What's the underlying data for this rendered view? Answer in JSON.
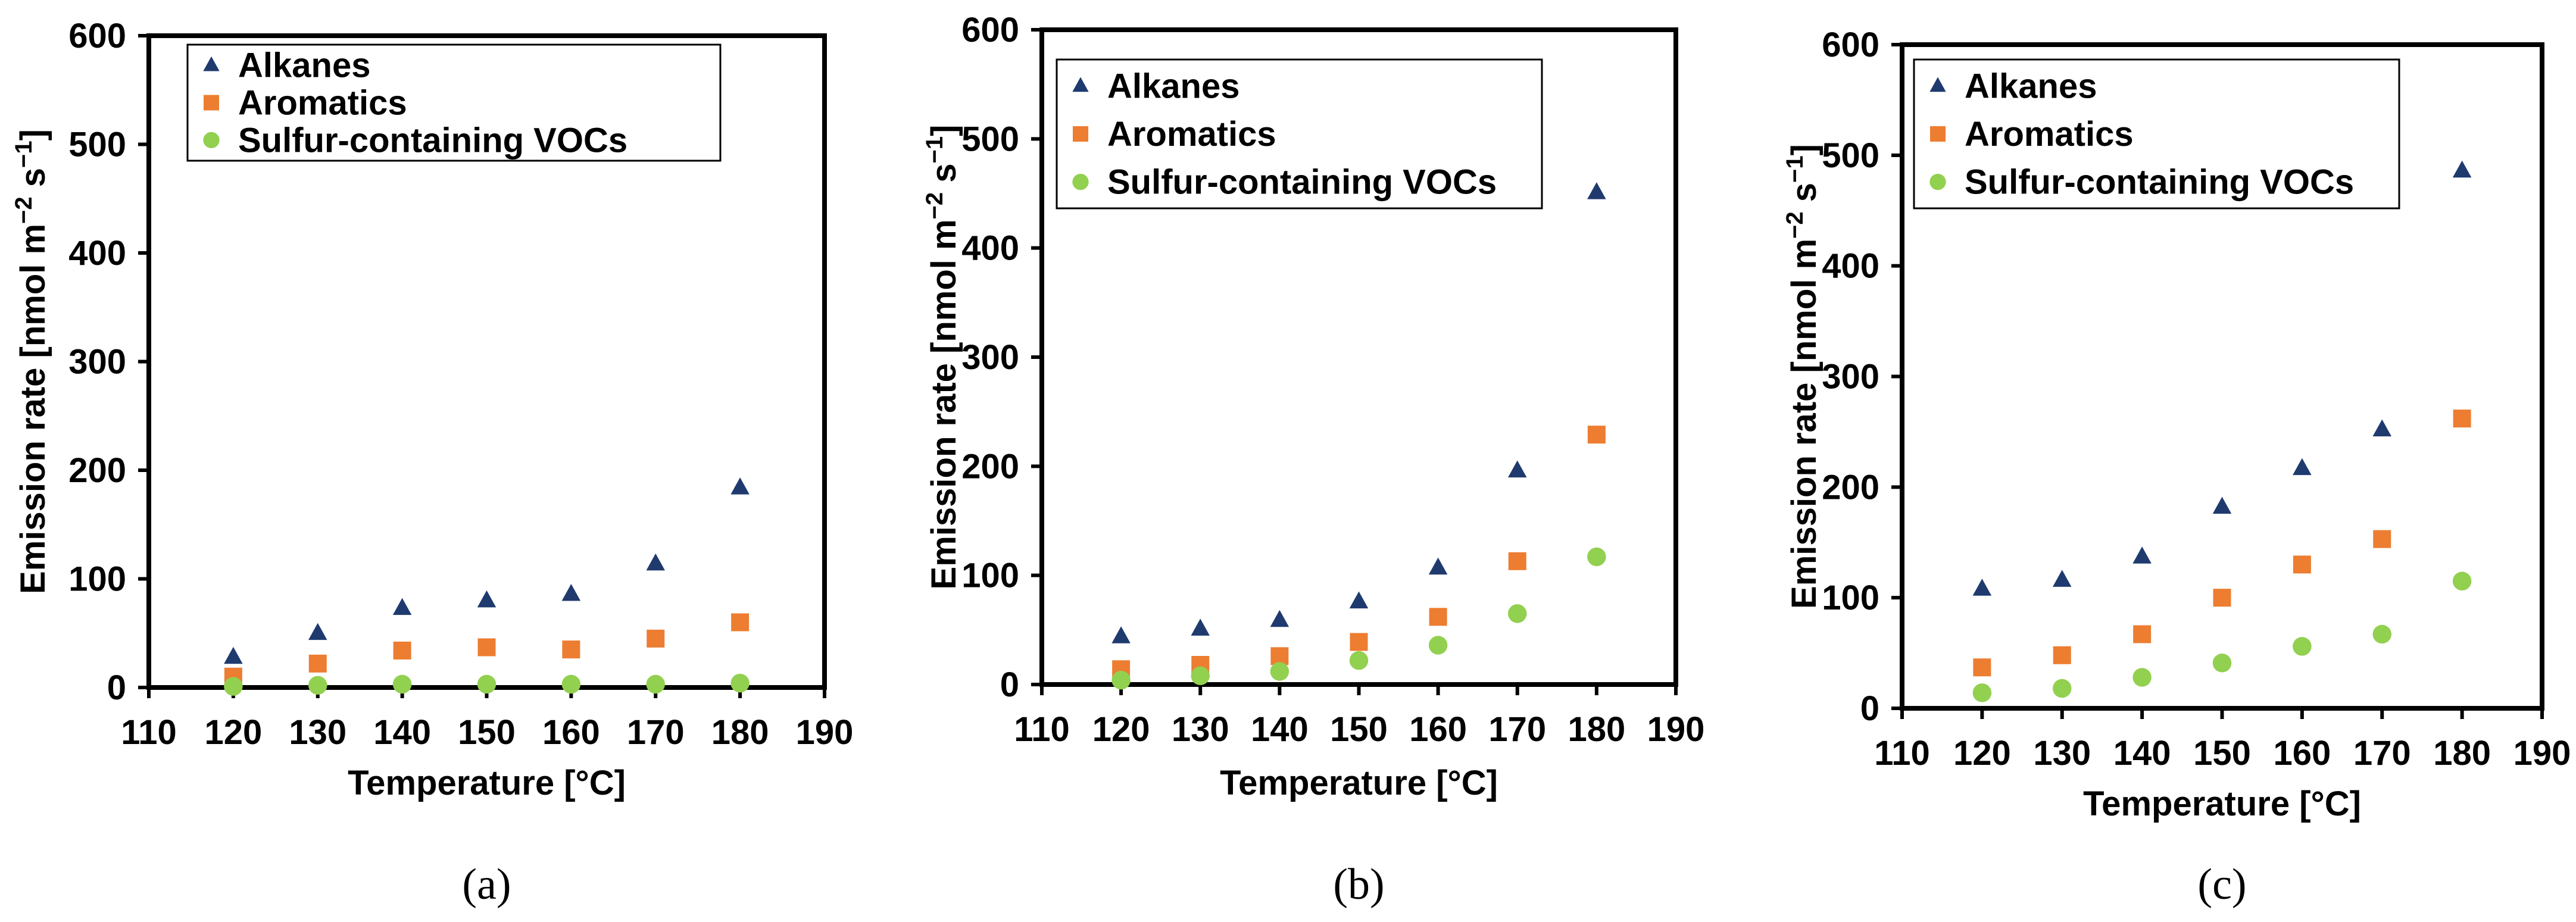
{
  "chart_data": [
    {
      "type": "scatter",
      "panel_label": "(a)",
      "xlabel": "Temperature [°C]",
      "ylabel": "Emission rate [nmol m",
      "ylabel_sup1": "−2",
      "ylabel_mid": " s",
      "ylabel_sup2": "−1",
      "ylabel_end": "]",
      "xlim": [
        110,
        190
      ],
      "ylim": [
        0,
        600
      ],
      "xticks": [
        "110",
        "120",
        "130",
        "140",
        "150",
        "160",
        "170",
        "180",
        "190"
      ],
      "yticks": [
        "0",
        "100",
        "200",
        "300",
        "400",
        "500",
        "600"
      ],
      "x": [
        120,
        130,
        140,
        150,
        160,
        170,
        180
      ],
      "series": [
        {
          "name": "Alkanes",
          "marker": "triangle",
          "color": "#1f3a6e",
          "values": [
            28,
            50,
            73,
            80,
            86,
            114,
            184
          ]
        },
        {
          "name": "Aromatics",
          "marker": "square",
          "color": "#ed7d31",
          "values": [
            10,
            22,
            34,
            37,
            35,
            45,
            60
          ]
        },
        {
          "name": "Sulfur-containing VOCs",
          "marker": "circle",
          "color": "#92d050",
          "values": [
            1,
            2,
            3,
            3,
            3,
            3,
            4
          ]
        }
      ]
    },
    {
      "type": "scatter",
      "panel_label": "(b)",
      "xlabel": "Temperature [°C]",
      "ylabel": "Emission rate [nmol m",
      "ylabel_sup1": "−2",
      "ylabel_mid": " s",
      "ylabel_sup2": "−1",
      "ylabel_end": "]",
      "xlim": [
        110,
        190
      ],
      "ylim": [
        0,
        600
      ],
      "xticks": [
        "110",
        "120",
        "130",
        "140",
        "150",
        "160",
        "170",
        "180",
        "190"
      ],
      "yticks": [
        "0",
        "100",
        "200",
        "300",
        "400",
        "500",
        "600"
      ],
      "x": [
        120,
        130,
        140,
        150,
        160,
        170,
        180
      ],
      "series": [
        {
          "name": "Alkanes",
          "marker": "triangle",
          "color": "#1f3a6e",
          "values": [
            44,
            51,
            59,
            76,
            107,
            196,
            451
          ]
        },
        {
          "name": "Aromatics",
          "marker": "square",
          "color": "#ed7d31",
          "values": [
            14,
            18,
            26,
            39,
            62,
            113,
            229
          ]
        },
        {
          "name": "Sulfur-containing VOCs",
          "marker": "circle",
          "color": "#92d050",
          "values": [
            4,
            8,
            12,
            22,
            36,
            65,
            117
          ]
        }
      ]
    },
    {
      "type": "scatter",
      "panel_label": "(c)",
      "xlabel": "Temperature [°C]",
      "ylabel": "Emission rate [nmol m",
      "ylabel_sup1": "−2",
      "ylabel_mid": " s",
      "ylabel_sup2": "−1",
      "ylabel_end": "]",
      "xlim": [
        110,
        190
      ],
      "ylim": [
        0,
        600
      ],
      "xticks": [
        "110",
        "120",
        "130",
        "140",
        "150",
        "160",
        "170",
        "180",
        "190"
      ],
      "yticks": [
        "0",
        "100",
        "200",
        "300",
        "400",
        "500",
        "600"
      ],
      "x": [
        120,
        130,
        140,
        150,
        160,
        170,
        180
      ],
      "series": [
        {
          "name": "Alkanes",
          "marker": "triangle",
          "color": "#1f3a6e",
          "values": [
            108,
            116,
            137,
            182,
            217,
            252,
            486
          ]
        },
        {
          "name": "Aromatics",
          "marker": "square",
          "color": "#ed7d31",
          "values": [
            37,
            48,
            67,
            100,
            130,
            153,
            262
          ]
        },
        {
          "name": "Sulfur-containing VOCs",
          "marker": "circle",
          "color": "#92d050",
          "values": [
            14,
            18,
            28,
            41,
            56,
            67,
            115
          ]
        }
      ]
    }
  ]
}
